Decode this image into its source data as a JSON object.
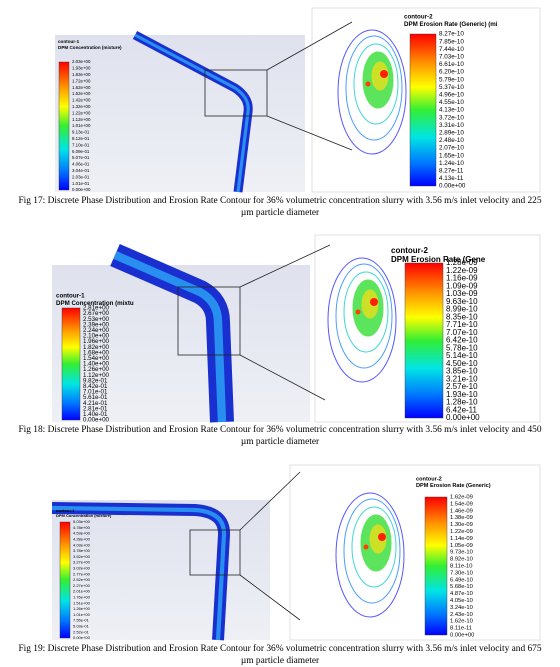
{
  "figures": [
    {
      "left": {
        "title": "contour-1",
        "subtitle": "DPM Concentration (mixture)",
        "levels": [
          "2.03e+00",
          "1.93e+00",
          "1.83e+00",
          "1.72e+00",
          "1.62e+00",
          "1.52e+00",
          "1.42e+00",
          "1.32e+00",
          "1.22e+00",
          "1.12e+00",
          "1.01e+00",
          "9.13e-01",
          "8.12e-01",
          "7.10e-01",
          "6.09e-01",
          "5.07e-01",
          "4.06e-01",
          "3.04e-01",
          "2.03e-01",
          "1.01e-01",
          "0.00e+00"
        ]
      },
      "right": {
        "title": "contour-2",
        "subtitle": "DPM Erosion Rate (Generic) (mi",
        "levels": [
          "8.27e-10",
          "7.85e-10",
          "7.44e-10",
          "7.03e-10",
          "6.61e-10",
          "6.20e-10",
          "5.79e-10",
          "5.37e-10",
          "4.96e-10",
          "4.55e-10",
          "4.13e-10",
          "3.72e-10",
          "3.31e-10",
          "2.89e-10",
          "2.48e-10",
          "2.07e-10",
          "1.65e-10",
          "1.24e-10",
          "8.27e-11",
          "4.13e-11",
          "0.00e+00"
        ]
      },
      "caption": "Fig 17: Discrete Phase Distribution and Erosion Rate Contour for 36% volumetric concentration slurry with 3.56 m/s inlet velocity and 225 µm particle diameter"
    },
    {
      "left": {
        "title": "contour-1",
        "subtitle": "DPM Concentration (mixtu",
        "levels": [
          "2.81e+00",
          "2.67e+00",
          "2.53e+00",
          "2.39e+00",
          "2.24e+00",
          "2.10e+00",
          "1.96e+00",
          "1.82e+00",
          "1.68e+00",
          "1.54e+00",
          "1.40e+00",
          "1.26e+00",
          "1.12e+00",
          "9.82e-01",
          "8.42e-01",
          "7.01e-01",
          "5.61e-01",
          "4.21e-01",
          "2.81e-01",
          "1.40e-01",
          "0.00e+00"
        ]
      },
      "right": {
        "title": "contour-2",
        "subtitle": "DPM Erosion Rate (Gene",
        "levels": [
          "1.28e-09",
          "1.22e-09",
          "1.16e-09",
          "1.09e-09",
          "1.03e-09",
          "9.63e-10",
          "8.99e-10",
          "8.35e-10",
          "7.71e-10",
          "7.07e-10",
          "6.42e-10",
          "5.78e-10",
          "5.14e-10",
          "4.50e-10",
          "3.85e-10",
          "3.21e-10",
          "2.57e-10",
          "1.93e-10",
          "1.28e-10",
          "6.42e-11",
          "0.00e+00"
        ]
      },
      "caption": "Fig 18: Discrete Phase Distribution and Erosion Rate Contour for 36% volumetric concentration slurry with 3.56 m/s inlet velocity and 450 µm particle diameter"
    },
    {
      "left": {
        "title": "contour-1",
        "subtitle": "DPM Concentration (mixture)",
        "levels": [
          "5.03e+00",
          "4.78e+00",
          "4.53e+00",
          "4.28e+00",
          "4.03e+00",
          "3.78e+00",
          "3.52e+00",
          "3.27e+00",
          "3.02e+00",
          "2.77e+00",
          "2.52e+00",
          "2.27e+00",
          "2.01e+00",
          "1.76e+00",
          "1.51e+00",
          "1.26e+00",
          "1.01e+00",
          "7.55e-01",
          "5.03e-01",
          "2.52e-01",
          "0.00e+00"
        ]
      },
      "right": {
        "title": "contour-2",
        "subtitle": "DPM Erosion Rate (Generic)",
        "levels": [
          "1.62e-09",
          "1.54e-09",
          "1.46e-09",
          "1.38e-09",
          "1.30e-09",
          "1.22e-09",
          "1.14e-09",
          "1.05e-09",
          "9.73e-10",
          "8.92e-10",
          "8.11e-10",
          "7.30e-10",
          "6.49e-10",
          "5.68e-10",
          "4.87e-10",
          "4.05e-10",
          "3.24e-10",
          "2.43e-10",
          "1.62e-10",
          "8.11e-11",
          "0.00e+00"
        ]
      },
      "caption": "Fig 19: Discrete Phase Distribution and Erosion Rate Contour for 36% volumetric concentration slurry with 3.56 m/s inlet velocity and 675 µm particle diameter"
    }
  ]
}
